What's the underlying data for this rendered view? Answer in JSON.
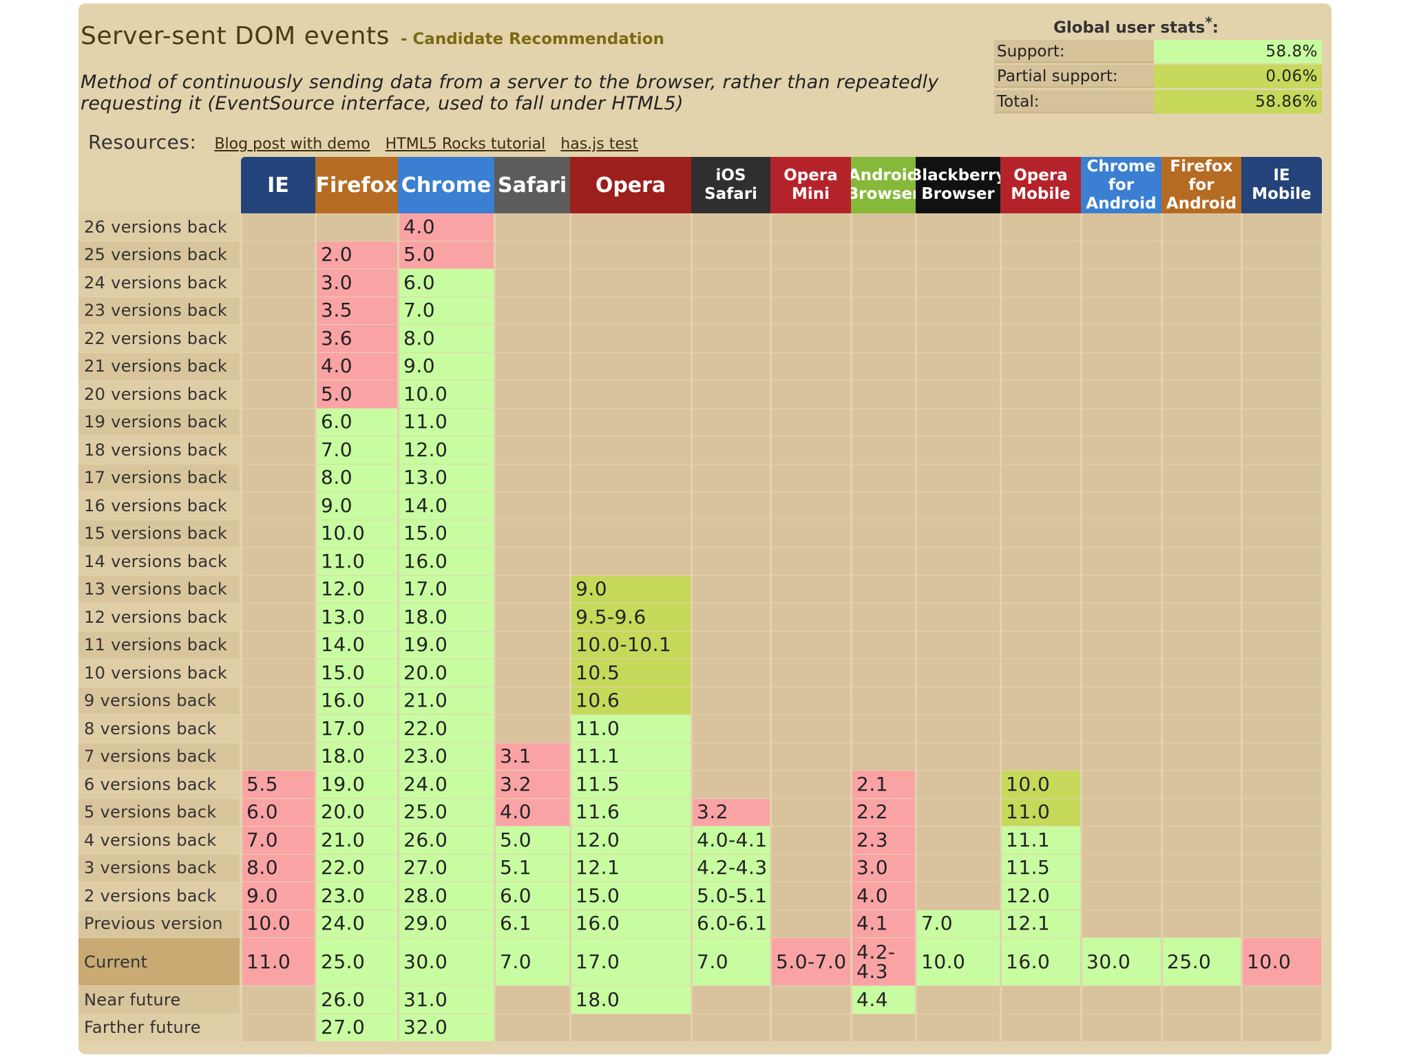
{
  "title": "Server-sent DOM events",
  "status": "- Candidate Recommendation",
  "description": "Method of continuously sending data from a server to the browser, rather than repeatedly requesting it (EventSource interface, used to fall under HTML5)",
  "resources": {
    "label": "Resources:",
    "links": [
      "Blog post with demo",
      "HTML5 Rocks tutorial",
      "has.js test"
    ]
  },
  "stats": {
    "title": "Global user stats",
    "asterisk": "*",
    "colon": ":",
    "rows": [
      {
        "label": "Support:",
        "value": "58.8%",
        "color": "#c8fca0"
      },
      {
        "label": "Partial support:",
        "value": "0.06%",
        "color": "#c6d95a"
      },
      {
        "label": "Total:",
        "value": "58.86%",
        "color": "#c6d95a"
      }
    ]
  },
  "colors": {
    "supported": "#c8fca0",
    "unsupported": "#f9a3a5",
    "partial": "#c6d95a",
    "empty": "#d8c39c"
  },
  "browsers": [
    {
      "name": "IE",
      "color": "#24437a"
    },
    {
      "name": "Firefox",
      "color": "#b66b22"
    },
    {
      "name": "Chrome",
      "color": "#3a7fd2"
    },
    {
      "name": "Safari",
      "color": "#5c5c5c"
    },
    {
      "name": "Opera",
      "color": "#9c1f1c"
    },
    {
      "name": "iOS Safari",
      "color": "#2f2f2f"
    },
    {
      "name": "Opera Mini",
      "color": "#b5232a"
    },
    {
      "name": "Android Browser",
      "color": "#86b83a"
    },
    {
      "name": "Blackberry Browser",
      "color": "#111111"
    },
    {
      "name": "Opera Mobile",
      "color": "#b5232a"
    },
    {
      "name": "Chrome for Android",
      "color": "#3a7fd2"
    },
    {
      "name": "Firefox for Android",
      "color": "#b66b22"
    },
    {
      "name": "IE Mobile",
      "color": "#24437a"
    }
  ],
  "rows": [
    {
      "label": "26 versions back",
      "cells": [
        null,
        null,
        [
          "4.0",
          "n"
        ],
        null,
        null,
        null,
        null,
        null,
        null,
        null,
        null,
        null,
        null
      ]
    },
    {
      "label": "25 versions back",
      "cells": [
        null,
        [
          "2.0",
          "n"
        ],
        [
          "5.0",
          "n"
        ],
        null,
        null,
        null,
        null,
        null,
        null,
        null,
        null,
        null,
        null
      ]
    },
    {
      "label": "24 versions back",
      "cells": [
        null,
        [
          "3.0",
          "n"
        ],
        [
          "6.0",
          "y"
        ],
        null,
        null,
        null,
        null,
        null,
        null,
        null,
        null,
        null,
        null
      ]
    },
    {
      "label": "23 versions back",
      "cells": [
        null,
        [
          "3.5",
          "n"
        ],
        [
          "7.0",
          "y"
        ],
        null,
        null,
        null,
        null,
        null,
        null,
        null,
        null,
        null,
        null
      ]
    },
    {
      "label": "22 versions back",
      "cells": [
        null,
        [
          "3.6",
          "n"
        ],
        [
          "8.0",
          "y"
        ],
        null,
        null,
        null,
        null,
        null,
        null,
        null,
        null,
        null,
        null
      ]
    },
    {
      "label": "21 versions back",
      "cells": [
        null,
        [
          "4.0",
          "n"
        ],
        [
          "9.0",
          "y"
        ],
        null,
        null,
        null,
        null,
        null,
        null,
        null,
        null,
        null,
        null
      ]
    },
    {
      "label": "20 versions back",
      "cells": [
        null,
        [
          "5.0",
          "n"
        ],
        [
          "10.0",
          "y"
        ],
        null,
        null,
        null,
        null,
        null,
        null,
        null,
        null,
        null,
        null
      ]
    },
    {
      "label": "19 versions back",
      "cells": [
        null,
        [
          "6.0",
          "y"
        ],
        [
          "11.0",
          "y"
        ],
        null,
        null,
        null,
        null,
        null,
        null,
        null,
        null,
        null,
        null
      ]
    },
    {
      "label": "18 versions back",
      "cells": [
        null,
        [
          "7.0",
          "y"
        ],
        [
          "12.0",
          "y"
        ],
        null,
        null,
        null,
        null,
        null,
        null,
        null,
        null,
        null,
        null
      ]
    },
    {
      "label": "17 versions back",
      "cells": [
        null,
        [
          "8.0",
          "y"
        ],
        [
          "13.0",
          "y"
        ],
        null,
        null,
        null,
        null,
        null,
        null,
        null,
        null,
        null,
        null
      ]
    },
    {
      "label": "16 versions back",
      "cells": [
        null,
        [
          "9.0",
          "y"
        ],
        [
          "14.0",
          "y"
        ],
        null,
        null,
        null,
        null,
        null,
        null,
        null,
        null,
        null,
        null
      ]
    },
    {
      "label": "15 versions back",
      "cells": [
        null,
        [
          "10.0",
          "y"
        ],
        [
          "15.0",
          "y"
        ],
        null,
        null,
        null,
        null,
        null,
        null,
        null,
        null,
        null,
        null
      ]
    },
    {
      "label": "14 versions back",
      "cells": [
        null,
        [
          "11.0",
          "y"
        ],
        [
          "16.0",
          "y"
        ],
        null,
        null,
        null,
        null,
        null,
        null,
        null,
        null,
        null,
        null
      ]
    },
    {
      "label": "13 versions back",
      "cells": [
        null,
        [
          "12.0",
          "y"
        ],
        [
          "17.0",
          "y"
        ],
        null,
        [
          "9.0",
          "a"
        ],
        null,
        null,
        null,
        null,
        null,
        null,
        null,
        null
      ]
    },
    {
      "label": "12 versions back",
      "cells": [
        null,
        [
          "13.0",
          "y"
        ],
        [
          "18.0",
          "y"
        ],
        null,
        [
          "9.5-9.6",
          "a"
        ],
        null,
        null,
        null,
        null,
        null,
        null,
        null,
        null
      ]
    },
    {
      "label": "11 versions back",
      "cells": [
        null,
        [
          "14.0",
          "y"
        ],
        [
          "19.0",
          "y"
        ],
        null,
        [
          "10.0-10.1",
          "a"
        ],
        null,
        null,
        null,
        null,
        null,
        null,
        null,
        null
      ]
    },
    {
      "label": "10 versions back",
      "cells": [
        null,
        [
          "15.0",
          "y"
        ],
        [
          "20.0",
          "y"
        ],
        null,
        [
          "10.5",
          "a"
        ],
        null,
        null,
        null,
        null,
        null,
        null,
        null,
        null
      ]
    },
    {
      "label": "9 versions back",
      "cells": [
        null,
        [
          "16.0",
          "y"
        ],
        [
          "21.0",
          "y"
        ],
        null,
        [
          "10.6",
          "a"
        ],
        null,
        null,
        null,
        null,
        null,
        null,
        null,
        null
      ]
    },
    {
      "label": "8 versions back",
      "cells": [
        null,
        [
          "17.0",
          "y"
        ],
        [
          "22.0",
          "y"
        ],
        null,
        [
          "11.0",
          "y"
        ],
        null,
        null,
        null,
        null,
        null,
        null,
        null,
        null
      ]
    },
    {
      "label": "7 versions back",
      "cells": [
        null,
        [
          "18.0",
          "y"
        ],
        [
          "23.0",
          "y"
        ],
        [
          "3.1",
          "n"
        ],
        [
          "11.1",
          "y"
        ],
        null,
        null,
        null,
        null,
        null,
        null,
        null,
        null
      ]
    },
    {
      "label": "6 versions back",
      "cells": [
        [
          "5.5",
          "n"
        ],
        [
          "19.0",
          "y"
        ],
        [
          "24.0",
          "y"
        ],
        [
          "3.2",
          "n"
        ],
        [
          "11.5",
          "y"
        ],
        null,
        null,
        [
          "2.1",
          "n"
        ],
        null,
        [
          "10.0",
          "a"
        ],
        null,
        null,
        null
      ]
    },
    {
      "label": "5 versions back",
      "cells": [
        [
          "6.0",
          "n"
        ],
        [
          "20.0",
          "y"
        ],
        [
          "25.0",
          "y"
        ],
        [
          "4.0",
          "n"
        ],
        [
          "11.6",
          "y"
        ],
        [
          "3.2",
          "n"
        ],
        null,
        [
          "2.2",
          "n"
        ],
        null,
        [
          "11.0",
          "a"
        ],
        null,
        null,
        null
      ]
    },
    {
      "label": "4 versions back",
      "cells": [
        [
          "7.0",
          "n"
        ],
        [
          "21.0",
          "y"
        ],
        [
          "26.0",
          "y"
        ],
        [
          "5.0",
          "y"
        ],
        [
          "12.0",
          "y"
        ],
        [
          "4.0-4.1",
          "y"
        ],
        null,
        [
          "2.3",
          "n"
        ],
        null,
        [
          "11.1",
          "y"
        ],
        null,
        null,
        null
      ]
    },
    {
      "label": "3 versions back",
      "cells": [
        [
          "8.0",
          "n"
        ],
        [
          "22.0",
          "y"
        ],
        [
          "27.0",
          "y"
        ],
        [
          "5.1",
          "y"
        ],
        [
          "12.1",
          "y"
        ],
        [
          "4.2-4.3",
          "y"
        ],
        null,
        [
          "3.0",
          "n"
        ],
        null,
        [
          "11.5",
          "y"
        ],
        null,
        null,
        null
      ]
    },
    {
      "label": "2 versions back",
      "cells": [
        [
          "9.0",
          "n"
        ],
        [
          "23.0",
          "y"
        ],
        [
          "28.0",
          "y"
        ],
        [
          "6.0",
          "y"
        ],
        [
          "15.0",
          "y"
        ],
        [
          "5.0-5.1",
          "y"
        ],
        null,
        [
          "4.0",
          "n"
        ],
        null,
        [
          "12.0",
          "y"
        ],
        null,
        null,
        null
      ]
    },
    {
      "label": "Previous version",
      "cells": [
        [
          "10.0",
          "n"
        ],
        [
          "24.0",
          "y"
        ],
        [
          "29.0",
          "y"
        ],
        [
          "6.1",
          "y"
        ],
        [
          "16.0",
          "y"
        ],
        [
          "6.0-6.1",
          "y"
        ],
        null,
        [
          "4.1",
          "n"
        ],
        [
          "7.0",
          "y"
        ],
        [
          "12.1",
          "y"
        ],
        null,
        null,
        null
      ]
    },
    {
      "label": "Current",
      "cells": [
        [
          "11.0",
          "n"
        ],
        [
          "25.0",
          "y"
        ],
        [
          "30.0",
          "y"
        ],
        [
          "7.0",
          "y"
        ],
        [
          "17.0",
          "y"
        ],
        [
          "7.0",
          "y"
        ],
        [
          "5.0-7.0",
          "n"
        ],
        [
          "4.2-4.3",
          "n"
        ],
        [
          "10.0",
          "y"
        ],
        [
          "16.0",
          "y"
        ],
        [
          "30.0",
          "y"
        ],
        [
          "25.0",
          "y"
        ],
        [
          "10.0",
          "n"
        ]
      ]
    },
    {
      "label": "Near future",
      "cells": [
        null,
        [
          "26.0",
          "y"
        ],
        [
          "31.0",
          "y"
        ],
        null,
        [
          "18.0",
          "y"
        ],
        null,
        null,
        [
          "4.4",
          "y"
        ],
        null,
        null,
        null,
        null,
        null
      ]
    },
    {
      "label": "Farther future",
      "cells": [
        null,
        [
          "27.0",
          "y"
        ],
        [
          "32.0",
          "y"
        ],
        null,
        null,
        null,
        null,
        null,
        null,
        null,
        null,
        null,
        null
      ]
    }
  ]
}
